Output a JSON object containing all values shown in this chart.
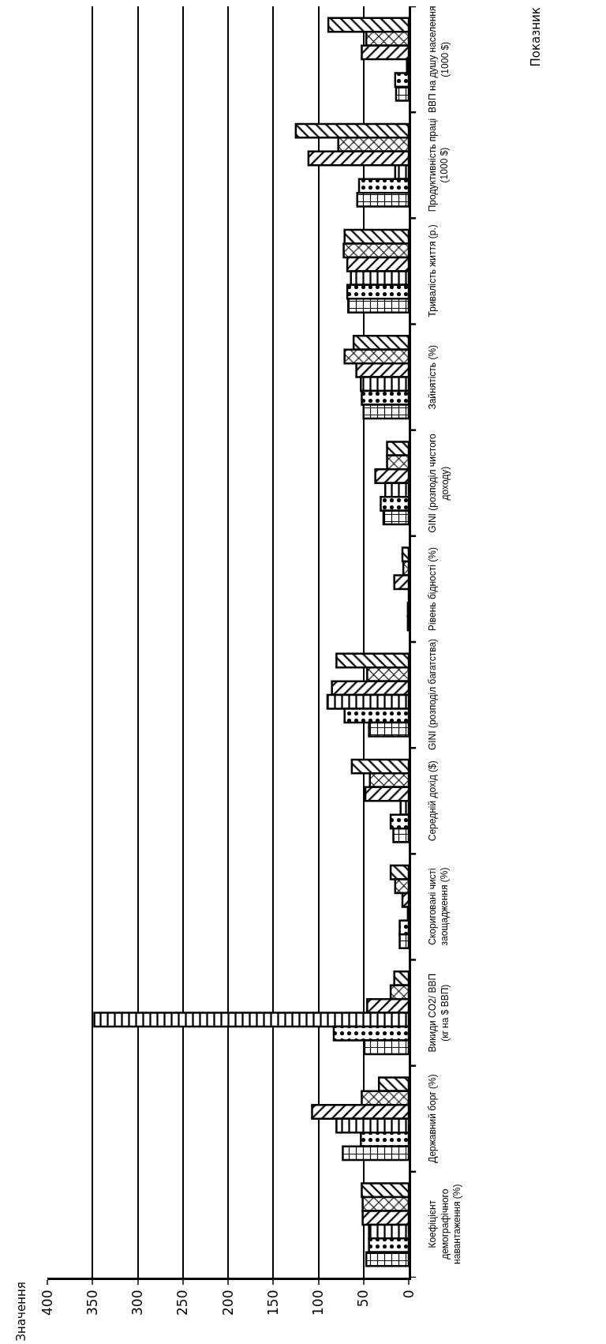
{
  "chart_data": {
    "type": "bar",
    "orientation": "horizontal",
    "annotations": [
      "Показник",
      "Значення"
    ],
    "categories": [
      "ВВП на душу населення\n(1000 $)",
      "Продуктивність праці\n(1000 $)",
      "Тривалість життя (р.)",
      "Зайнятість (%)",
      "GINI (розподіл чистого\nдоходу)",
      "Рівень бідності (%)",
      "GINI (розподіл багатства)",
      "Середній дохід ($)",
      "Скориговані чисті\nзаощадження (%)",
      "Викиди CO2/ ВВП\n(кг на $ ВВП)",
      "Державний борг (%)",
      "Коефіцієнт\nдемографічного\nнавантаження (%)"
    ],
    "series": [
      {
        "color": "#000000",
        "values": [
          89,
          125,
          71,
          61,
          24,
          7,
          80,
          63,
          20,
          16,
          33,
          52
        ]
      },
      {
        "color": "#000000",
        "values": [
          47,
          78,
          72,
          71,
          24,
          6,
          46,
          43,
          15,
          20,
          52,
          51
        ]
      },
      {
        "color": "#000000",
        "values": [
          52,
          111,
          68,
          58,
          37,
          16,
          85,
          48,
          7,
          46,
          107,
          51
        ]
      },
      {
        "color": "#000000",
        "values": [
          2,
          15,
          64,
          53,
          26,
          0,
          90,
          9,
          1,
          348,
          80,
          44
        ]
      },
      {
        "color": "#000000",
        "values": [
          15,
          55,
          68,
          52,
          31,
          1,
          71,
          20,
          10,
          83,
          53,
          44
        ]
      },
      {
        "color": "#000000",
        "values": [
          14,
          57,
          67,
          50,
          28,
          1,
          44,
          17,
          10,
          49,
          73,
          47
        ]
      }
    ],
    "xlim": [
      400,
      0
    ],
    "xticks": [
      0,
      50,
      100,
      150,
      200,
      250,
      300,
      350,
      400
    ],
    "grid": "x",
    "legend": false
  }
}
